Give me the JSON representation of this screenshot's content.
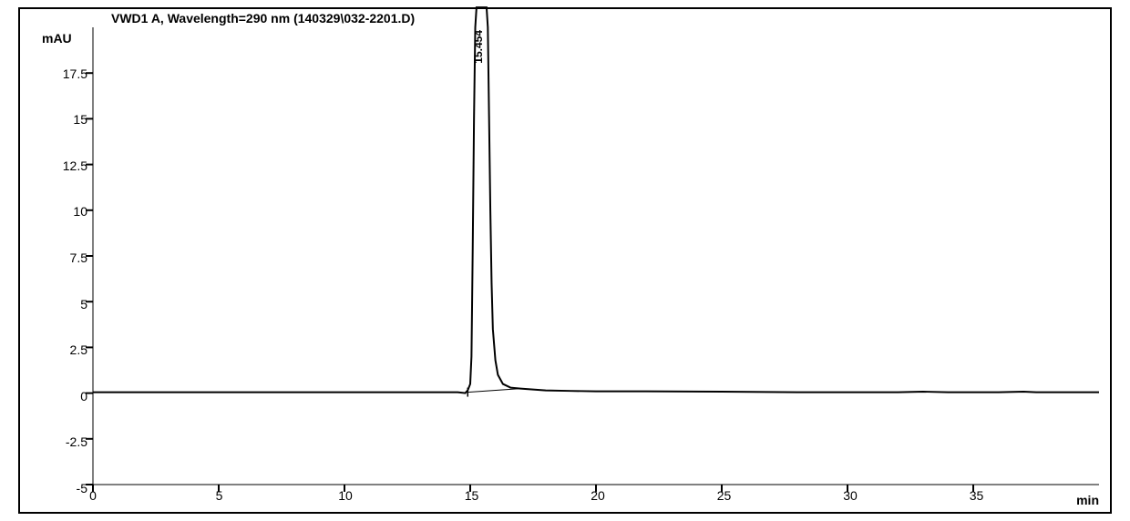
{
  "chromatogram": {
    "type": "line",
    "header": "VWD1 A, Wavelength=290 nm (140329\\032-2201.D)",
    "y_axis_label": "mAU",
    "x_axis_label": "min",
    "xlim": [
      0,
      40
    ],
    "ylim": [
      -5,
      20
    ],
    "x_ticks": [
      0,
      5,
      10,
      15,
      20,
      25,
      30,
      35
    ],
    "y_ticks": [
      -5,
      -2.5,
      0,
      2.5,
      5,
      7.5,
      10,
      12.5,
      15,
      17.5
    ],
    "line_color": "#000000",
    "line_width": 2,
    "background_color": "#ffffff",
    "border_color": "#000000",
    "tick_color": "#000000",
    "font_size_labels": 14,
    "font_size_peak": 12,
    "peak": {
      "retention_time": 15.454,
      "label": "15.454",
      "height_above_ymax": true
    },
    "baseline_y": 0.05,
    "data_points": [
      [
        0,
        0.05
      ],
      [
        1,
        0.05
      ],
      [
        2,
        0.05
      ],
      [
        3,
        0.05
      ],
      [
        4,
        0.05
      ],
      [
        5,
        0.05
      ],
      [
        6,
        0.05
      ],
      [
        7,
        0.05
      ],
      [
        8,
        0.05
      ],
      [
        9,
        0.05
      ],
      [
        10,
        0.05
      ],
      [
        11,
        0.05
      ],
      [
        12,
        0.05
      ],
      [
        13,
        0.05
      ],
      [
        14,
        0.05
      ],
      [
        14.5,
        0.05
      ],
      [
        14.8,
        0.0
      ],
      [
        14.9,
        0.15
      ],
      [
        15.0,
        0.5
      ],
      [
        15.05,
        2
      ],
      [
        15.1,
        8
      ],
      [
        15.15,
        15
      ],
      [
        15.2,
        20
      ],
      [
        15.25,
        25
      ],
      [
        15.3,
        25
      ],
      [
        15.6,
        25
      ],
      [
        15.65,
        25
      ],
      [
        15.7,
        20
      ],
      [
        15.75,
        15
      ],
      [
        15.8,
        10
      ],
      [
        15.85,
        6
      ],
      [
        15.9,
        3.5
      ],
      [
        16.0,
        1.8
      ],
      [
        16.1,
        1.0
      ],
      [
        16.3,
        0.5
      ],
      [
        16.6,
        0.3
      ],
      [
        17.0,
        0.25
      ],
      [
        17.5,
        0.2
      ],
      [
        18,
        0.15
      ],
      [
        19,
        0.12
      ],
      [
        20,
        0.1
      ],
      [
        22,
        0.1
      ],
      [
        25,
        0.08
      ],
      [
        28,
        0.05
      ],
      [
        30,
        0.05
      ],
      [
        32,
        0.05
      ],
      [
        33,
        0.08
      ],
      [
        34,
        0.05
      ],
      [
        36,
        0.05
      ],
      [
        37,
        0.08
      ],
      [
        37.5,
        0.05
      ],
      [
        38,
        0.05
      ],
      [
        39,
        0.05
      ],
      [
        40,
        0.05
      ]
    ],
    "integration_baseline": [
      [
        14.9,
        0.05
      ],
      [
        17.0,
        0.25
      ]
    ]
  }
}
